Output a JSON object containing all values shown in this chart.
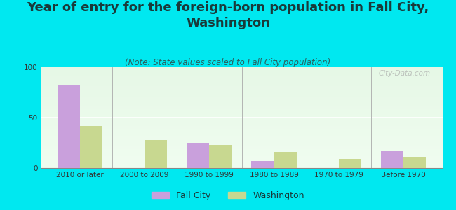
{
  "title": "Year of entry for the foreign-born population in Fall City,\nWashington",
  "subtitle": "(Note: State values scaled to Fall City population)",
  "categories": [
    "2010 or later",
    "2000 to 2009",
    "1990 to 1999",
    "1980 to 1989",
    "1970 to 1979",
    "Before 1970"
  ],
  "fall_city": [
    82,
    0,
    25,
    7,
    0,
    17
  ],
  "washington": [
    42,
    28,
    23,
    16,
    9,
    11
  ],
  "fall_city_color": "#c9a0dc",
  "washington_color": "#c8d890",
  "bg_color": "#00e8f0",
  "ylim": [
    0,
    100
  ],
  "yticks": [
    0,
    50,
    100
  ],
  "bar_width": 0.35,
  "title_fontsize": 13,
  "subtitle_fontsize": 8.5,
  "tick_fontsize": 7.5,
  "legend_fontsize": 9,
  "watermark": "City-Data.com"
}
